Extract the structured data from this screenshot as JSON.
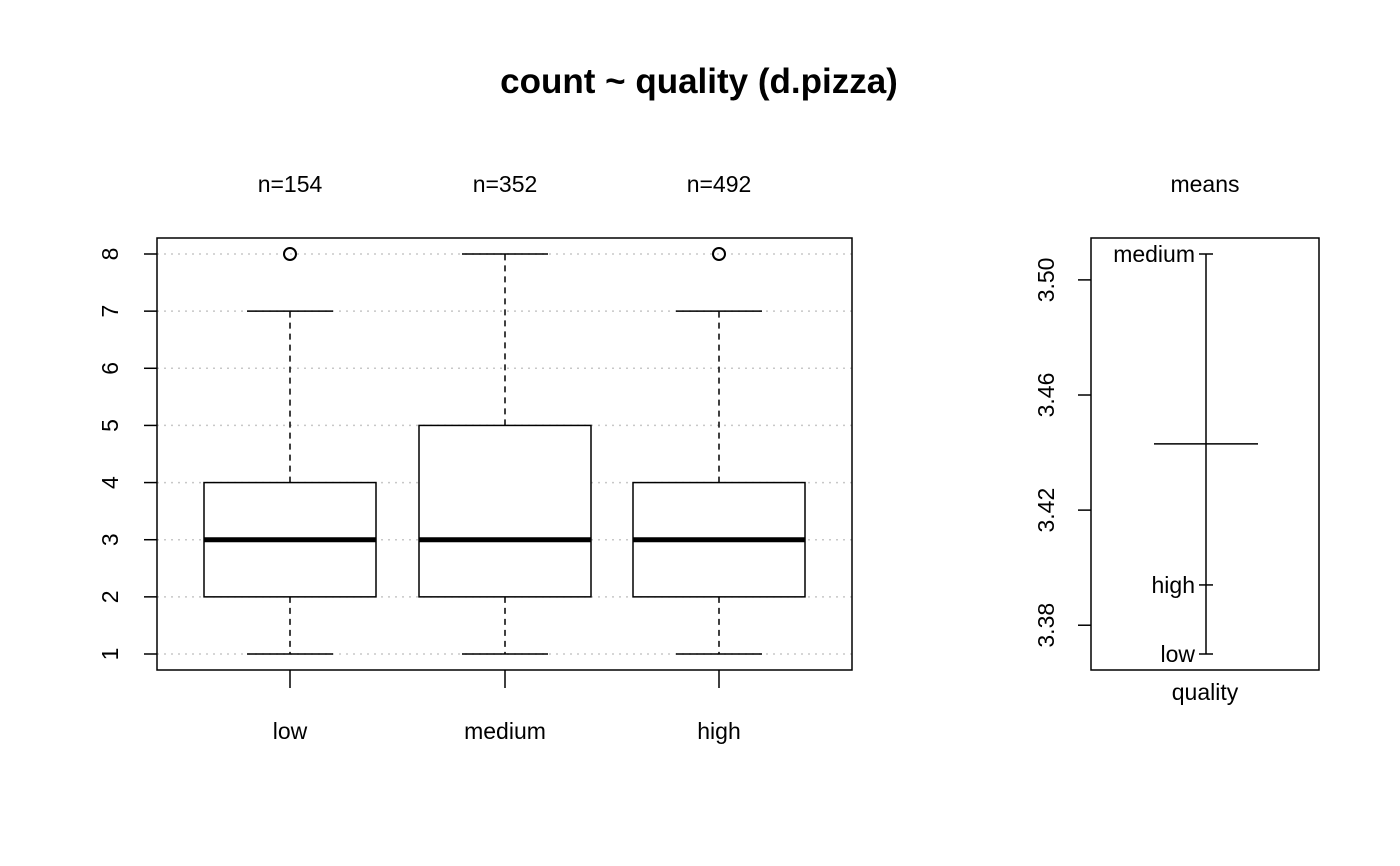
{
  "chart_data": [
    {
      "type": "boxplot",
      "title": "count ~ quality (d.pizza)",
      "categories": [
        "low",
        "medium",
        "high"
      ],
      "counts": [
        "n=154",
        "n=352",
        "n=492"
      ],
      "ylim": [
        1,
        8
      ],
      "yticks": [
        "1",
        "2",
        "3",
        "4",
        "5",
        "6",
        "7",
        "8"
      ],
      "grid": true,
      "boxes": [
        {
          "category": "low",
          "whisker_low": 1,
          "q1": 2,
          "median": 3,
          "q3": 4,
          "whisker_high": 7,
          "outliers": [
            8
          ]
        },
        {
          "category": "medium",
          "whisker_low": 1,
          "q1": 2,
          "median": 3,
          "q3": 5,
          "whisker_high": 8,
          "outliers": []
        },
        {
          "category": "high",
          "whisker_low": 1,
          "q1": 2,
          "median": 3,
          "q3": 4,
          "whisker_high": 7,
          "outliers": [
            8
          ]
        }
      ]
    },
    {
      "type": "means",
      "title": "means",
      "xlabel": "quality",
      "ylim": [
        3.37,
        3.515
      ],
      "yticks": [
        "3.38",
        "3.42",
        "3.46",
        "3.50"
      ],
      "grand_mean": 3.443,
      "points": [
        {
          "label": "medium",
          "value": 3.509
        },
        {
          "label": "high",
          "value": 3.394
        },
        {
          "label": "low",
          "value": 3.37
        }
      ]
    }
  ]
}
